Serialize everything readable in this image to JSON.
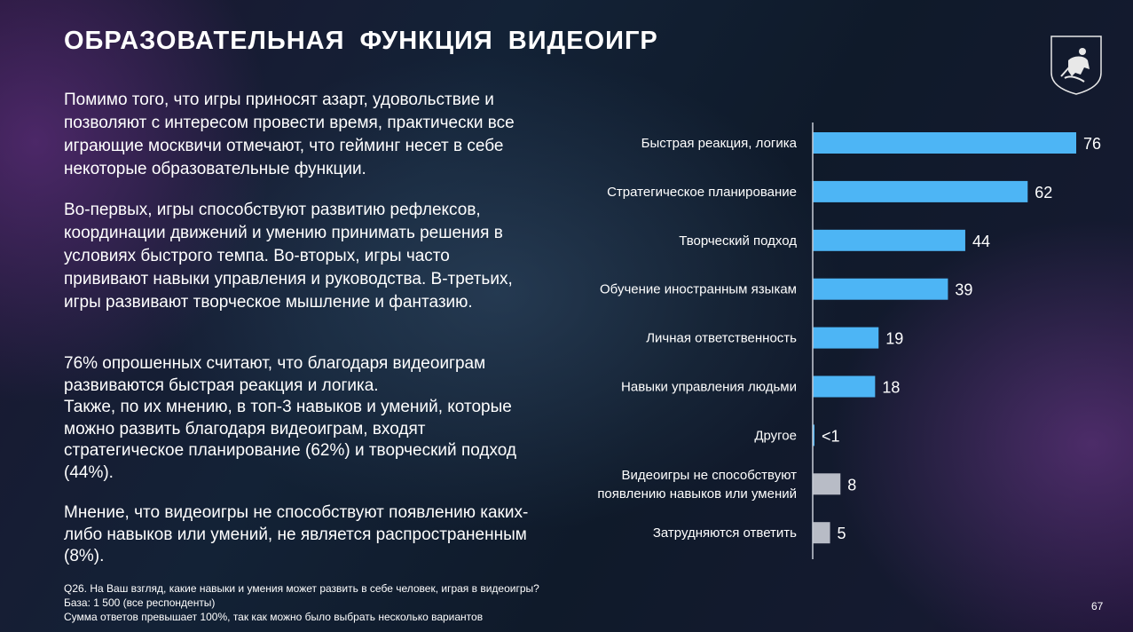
{
  "header": {
    "title": "ОБРАЗОВАТЕЛЬНАЯ ФУНКЦИЯ ВИДЕОИГР"
  },
  "emblem": {
    "icon": "moscow-coat-of-arms-icon"
  },
  "text": {
    "p1": "Помимо того, что игры приносят азарт, удовольствие и позволяют с интересом провести время, практически все играющие москвичи отмечают, что гейминг несет в себе некоторые образовательные функции.",
    "p2": "Во-первых, игры способствуют развитию рефлексов, координации движений и умению принимать решения в условиях быстрого темпа. Во-вторых, игры часто прививают навыки управления и руководства. В-третьих, игры развивают творческое мышление и фантазию.",
    "p3_line1": "76% опрошенных считают, что благодаря видеоиграм развиваются быстрая реакция и логика.",
    "p3_line2": "Также, по их мнению, в топ-3 навыков и умений, которые можно развить благодаря видеоиграм, входят стратегическое планирование (62%) и творческий подход (44%).",
    "p4": "Мнение, что видеоигры не способствуют появлению каких-либо навыков или умений, не является распространенным (8%)."
  },
  "footnote": {
    "line1": "Q26. На Ваш взгляд, какие навыки и умения может развить в себе человек, играя в видеоигры?",
    "line2": "База: 1 500 (все респонденты)",
    "line3": "Сумма ответов превышает 100%, так как можно было выбрать несколько вариантов"
  },
  "page_number": "67",
  "chart_data": {
    "type": "bar",
    "orientation": "horizontal",
    "categories": [
      [
        "Быстрая реакция, логика"
      ],
      [
        "Стратегическое планирование"
      ],
      [
        "Творческий подход"
      ],
      [
        "Обучение иностранным языкам"
      ],
      [
        "Личная ответственность"
      ],
      [
        "Навыки управления людьми"
      ],
      [
        "Другое"
      ],
      [
        "Видеоигры не способствуют",
        "появлению навыков или умений"
      ],
      [
        "Затрудняются ответить"
      ]
    ],
    "values": [
      76,
      62,
      44,
      39,
      19,
      18,
      0.5,
      8,
      5
    ],
    "value_labels": [
      "76",
      "62",
      "44",
      "39",
      "19",
      "18",
      "<1",
      "8",
      "5"
    ],
    "bar_colors": [
      "#4db5f5",
      "#4db5f5",
      "#4db5f5",
      "#4db5f5",
      "#4db5f5",
      "#4db5f5",
      "#4db5f5",
      "#b8bcc6",
      "#b8bcc6"
    ],
    "xlim": [
      0,
      76
    ],
    "unit": "%"
  }
}
